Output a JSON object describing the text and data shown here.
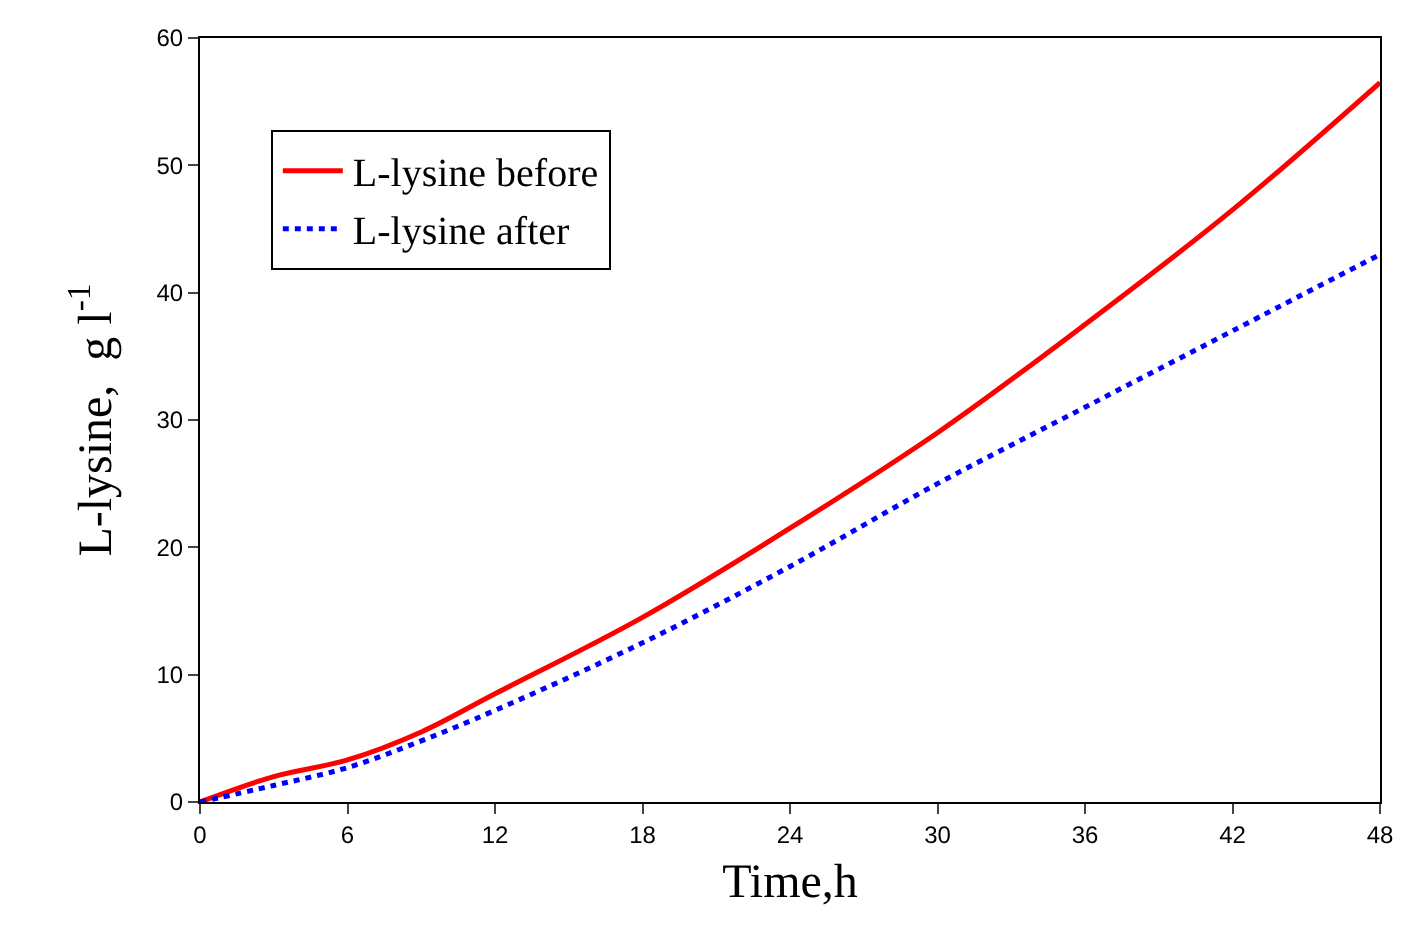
{
  "chart_data": {
    "type": "line",
    "xlabel": "Time,h",
    "ylabel": "L-lysine,  g l$^{-1}$",
    "x": [
      0,
      3,
      6,
      9,
      12,
      18,
      24,
      30,
      36,
      42,
      48
    ],
    "series": [
      {
        "name": "L-lysine before",
        "color": "#ff0000",
        "line_style": "solid",
        "values": [
          0,
          2,
          3.3,
          5.5,
          8.5,
          14.5,
          21.5,
          29,
          37.5,
          46.5,
          56.5
        ]
      },
      {
        "name": "L-lysine after",
        "color": "#0000ff",
        "line_style": "dotted",
        "values": [
          0,
          1.3,
          2.7,
          4.8,
          7.2,
          12.5,
          18.5,
          25,
          31,
          37,
          43
        ]
      }
    ],
    "xlim": [
      0,
      48
    ],
    "xticks": [
      0,
      6,
      12,
      18,
      24,
      30,
      36,
      42,
      48
    ],
    "ylim": [
      0,
      60
    ],
    "yticks": [
      0,
      10,
      20,
      30,
      40,
      50,
      60
    ],
    "legend": "top left",
    "marker": "none"
  }
}
